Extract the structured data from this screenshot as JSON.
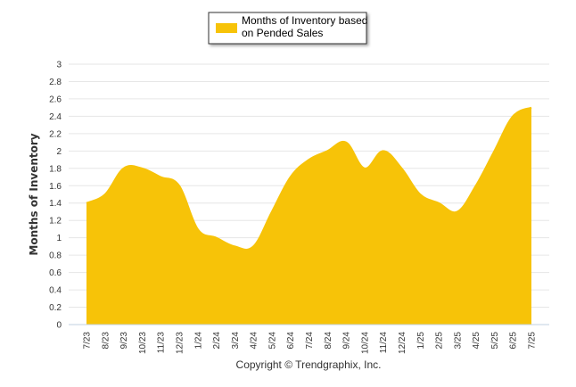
{
  "chart_data": {
    "type": "area",
    "ylabel": "Months of Inventory",
    "ylim": [
      0,
      3
    ],
    "yticks": [
      "0",
      "0.2",
      "0.4",
      "0.6",
      "0.8",
      "1",
      "1.2",
      "1.4",
      "1.6",
      "1.8",
      "2",
      "2.2",
      "2.4",
      "2.6",
      "2.8",
      "3"
    ],
    "grid": true,
    "legend_placement": "top-center",
    "color": "#F7C308",
    "categories": [
      "7/23",
      "8/23",
      "9/23",
      "10/23",
      "11/23",
      "12/23",
      "1/24",
      "2/24",
      "3/24",
      "4/24",
      "5/24",
      "6/24",
      "7/24",
      "8/24",
      "9/24",
      "10/24",
      "11/24",
      "12/24",
      "1/25",
      "2/25",
      "3/25",
      "4/25",
      "5/25",
      "6/25",
      "7/25"
    ],
    "series": [
      {
        "name": "Months of Inventory based on Pended Sales",
        "values": [
          1.4,
          1.5,
          1.8,
          1.8,
          1.7,
          1.6,
          1.1,
          1.0,
          0.9,
          0.9,
          1.3,
          1.7,
          1.9,
          2.0,
          2.1,
          1.8,
          2.0,
          1.8,
          1.5,
          1.4,
          1.3,
          1.6,
          2.0,
          2.4,
          2.5
        ]
      }
    ],
    "legend_lines": [
      "Months of Inventory based",
      "on Pended Sales"
    ],
    "copyright": "Copyright © Trendgraphix, Inc."
  }
}
